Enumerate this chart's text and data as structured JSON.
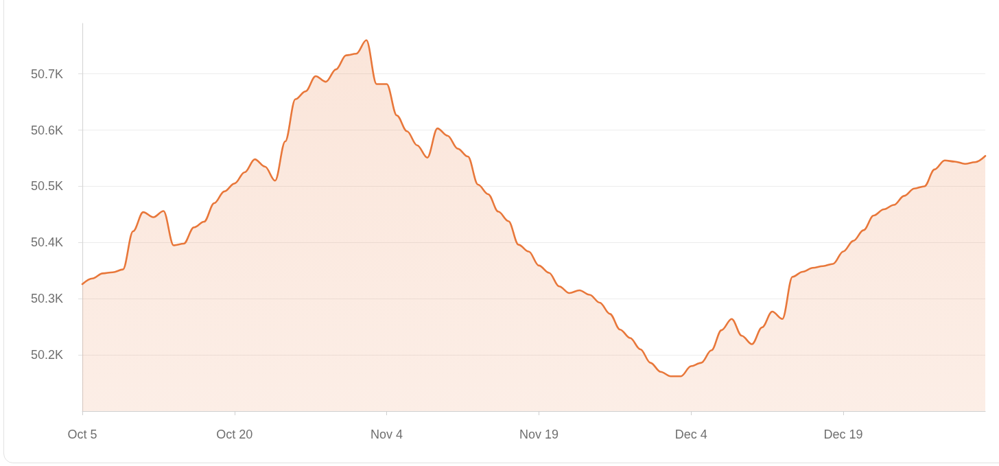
{
  "chart_data": {
    "type": "area",
    "categories": [
      "Oct 5",
      null,
      null,
      null,
      null,
      null,
      null,
      null,
      null,
      null,
      null,
      null,
      null,
      null,
      null,
      "Oct 20",
      null,
      null,
      null,
      null,
      null,
      null,
      null,
      null,
      null,
      null,
      null,
      null,
      null,
      null,
      "Nov 4",
      null,
      null,
      null,
      null,
      null,
      null,
      null,
      null,
      null,
      null,
      null,
      null,
      null,
      null,
      "Nov 19",
      null,
      null,
      null,
      null,
      null,
      null,
      null,
      null,
      null,
      null,
      null,
      null,
      null,
      null,
      "Dec 4",
      null,
      null,
      null,
      null,
      null,
      null,
      null,
      null,
      null,
      null,
      null,
      null,
      null,
      null,
      "Dec 19",
      null,
      null,
      null,
      null,
      null,
      null,
      null,
      null,
      null,
      null,
      null,
      null,
      null,
      null
    ],
    "values": [
      50326,
      50336,
      50345,
      50347,
      50352,
      50420,
      50454,
      50445,
      50456,
      50395,
      50398,
      50427,
      50437,
      50470,
      50491,
      50505,
      50525,
      50548,
      50535,
      50510,
      50580,
      50655,
      50669,
      50696,
      50686,
      50708,
      50733,
      50736,
      50760,
      50682,
      50682,
      50626,
      50598,
      50573,
      50551,
      50603,
      50590,
      50567,
      50553,
      50503,
      50486,
      50455,
      50438,
      50396,
      50384,
      50359,
      50346,
      50322,
      50310,
      50315,
      50307,
      50293,
      50273,
      50245,
      50230,
      50210,
      50186,
      50170,
      50162,
      50162,
      50180,
      50186,
      50208,
      50244,
      50264,
      50234,
      50219,
      50249,
      50277,
      50264,
      50339,
      50348,
      50355,
      50358,
      50362,
      50384,
      50403,
      50422,
      50448,
      50459,
      50467,
      50483,
      50496,
      50500,
      50530,
      50546,
      50544,
      50540,
      50543,
      50554
    ],
    "color": "#e8773a",
    "ylim": [
      50100,
      50790
    ],
    "yticks": [
      {
        "value": 50200,
        "label": "50.2K"
      },
      {
        "value": 50300,
        "label": "50.3K"
      },
      {
        "value": 50400,
        "label": "50.4K"
      },
      {
        "value": 50500,
        "label": "50.5K"
      },
      {
        "value": 50600,
        "label": "50.6K"
      },
      {
        "value": 50700,
        "label": "50.7K"
      }
    ],
    "grid": "y",
    "marker": "none"
  }
}
